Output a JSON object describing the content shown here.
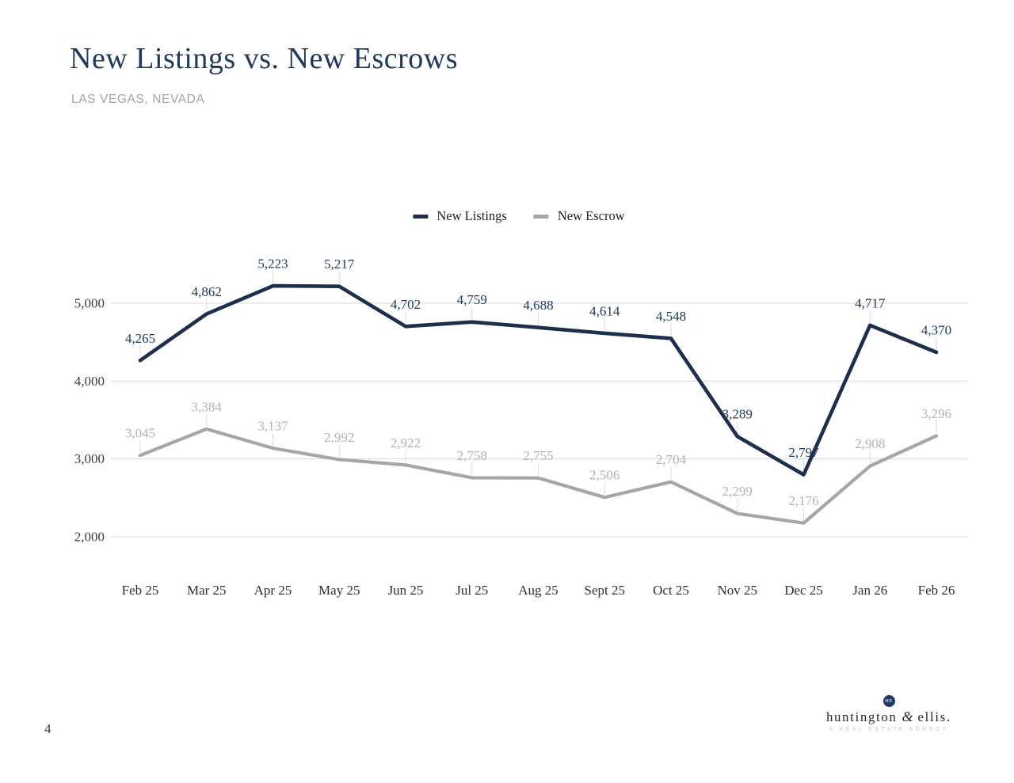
{
  "page": {
    "number": "4"
  },
  "header": {
    "title": "New Listings vs. New Escrows",
    "subtitle": "LAS VEGAS, NEVADA",
    "title_color": "#22395e",
    "subtitle_color": "#a5a5a5"
  },
  "legend": {
    "items": [
      {
        "label": "New Listings",
        "color": "#1e2e4d"
      },
      {
        "label": "New Escrow",
        "color": "#a6a6a6"
      }
    ]
  },
  "chart_data": {
    "type": "line",
    "title": "New Listings vs. New Escrows",
    "categories": [
      "Feb 25",
      "Mar 25",
      "Apr 25",
      "May 25",
      "Jun 25",
      "Jul 25",
      "Aug 25",
      "Sept 25",
      "Oct 25",
      "Nov 25",
      "Dec 25",
      "Jan 26",
      "Feb 26"
    ],
    "series": [
      {
        "name": "New Listings",
        "color": "#1e2e4d",
        "label_color": "#22395c",
        "values": [
          4265,
          4862,
          5223,
          5217,
          4702,
          4759,
          4688,
          4614,
          4548,
          3289,
          2797,
          4717,
          4370
        ]
      },
      {
        "name": "New Escrow",
        "color": "#a6a6a6",
        "label_color": "#b2b2b2",
        "values": [
          3045,
          3384,
          3137,
          2992,
          2922,
          2758,
          2755,
          2506,
          2704,
          2299,
          2176,
          2908,
          3296
        ]
      }
    ],
    "y_ticks": [
      5000,
      4000,
      3000,
      2000
    ],
    "ylim": [
      1900,
      5450
    ],
    "grid": "horizontal-only",
    "gridline_color": "#d9d9d9",
    "leader_line_color": "#dbdbdb",
    "tick_label_color": "#3d3d3d",
    "legend_position": "top-center",
    "data_labels": true
  },
  "footer": {
    "logo": {
      "monogram": "HE",
      "name_left": "huntington",
      "amp": "&",
      "name_right": "ellis.",
      "tagline": "A REAL ESTATE AGENCY",
      "circle_color": "#1f3864"
    }
  }
}
